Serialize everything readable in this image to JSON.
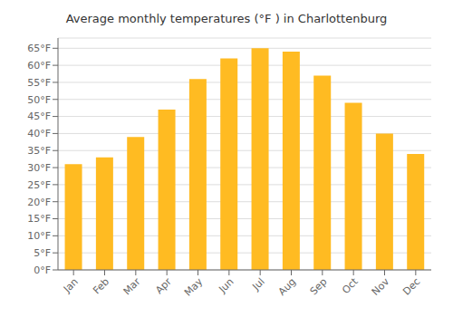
{
  "chart_data": {
    "type": "bar",
    "title": "Average monthly temperatures (°F ) in Charlottenburg",
    "categories": [
      "Jan",
      "Feb",
      "Mar",
      "Apr",
      "May",
      "Jun",
      "Jul",
      "Aug",
      "Sep",
      "Oct",
      "Nov",
      "Dec"
    ],
    "values": [
      31,
      33,
      39,
      47,
      56,
      62,
      65,
      64,
      57,
      49,
      40,
      34
    ],
    "color": "#FFBB22",
    "ylim": [
      0,
      68
    ],
    "yticks": [
      {
        "value": 0,
        "label": "0°F"
      },
      {
        "value": 5,
        "label": "5°F"
      },
      {
        "value": 10,
        "label": "10°F"
      },
      {
        "value": 15,
        "label": "15°F"
      },
      {
        "value": 20,
        "label": "20°F"
      },
      {
        "value": 25,
        "label": "25°F"
      },
      {
        "value": 30,
        "label": "30°F"
      },
      {
        "value": 35,
        "label": "35°F"
      },
      {
        "value": 40,
        "label": "40°F"
      },
      {
        "value": 45,
        "label": "45°F"
      },
      {
        "value": 50,
        "label": "50°F"
      },
      {
        "value": 55,
        "label": "55°F"
      },
      {
        "value": 60,
        "label": "60°F"
      },
      {
        "value": 65,
        "label": "65°F"
      }
    ],
    "grid": true
  }
}
